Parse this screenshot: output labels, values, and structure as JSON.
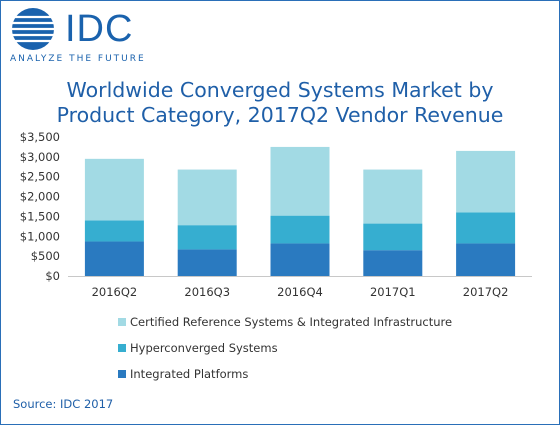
{
  "logo": {
    "word": "IDC",
    "tagline": "ANALYZE THE FUTURE"
  },
  "title_lines": [
    "Worldwide Converged Systems Market by",
    "Product Category, 2017Q2 Vendor Revenue"
  ],
  "source": "Source: IDC 2017",
  "colors": {
    "certified": "#a2dae4",
    "hyper": "#36aed0",
    "integrated": "#2a7ac0",
    "brand": "#1a62ad"
  },
  "chart_data": {
    "type": "bar",
    "stacked": true,
    "categories": [
      "2016Q2",
      "2016Q3",
      "2016Q4",
      "2017Q1",
      "2017Q2"
    ],
    "series": [
      {
        "name": "Integrated Platforms",
        "values": [
          870,
          670,
          820,
          650,
          820
        ]
      },
      {
        "name": "Hyperconverged Systems",
        "values": [
          530,
          610,
          700,
          670,
          780
        ]
      },
      {
        "name": "Certified Reference Systems & Integrated Infrastructure",
        "values": [
          1550,
          1400,
          1730,
          1360,
          1550
        ]
      }
    ],
    "ylim": [
      0,
      3500
    ],
    "yticks": [
      "$0",
      "$500",
      "$1,000",
      "$1,500",
      "$2,000",
      "$2,500",
      "$3,000",
      "$3,500"
    ],
    "grid": false,
    "legend": [
      "Certified Reference Systems & Integrated Infrastructure",
      "Hyperconverged Systems",
      "Integrated Platforms"
    ],
    "legend_position": "bottom"
  }
}
